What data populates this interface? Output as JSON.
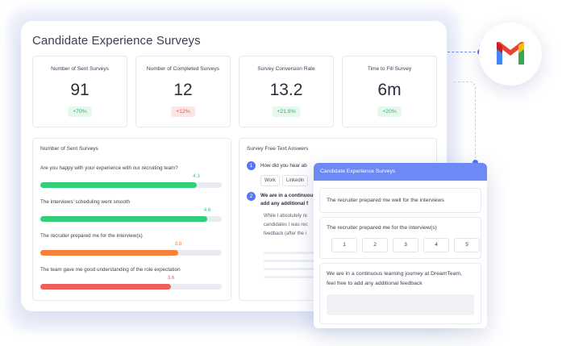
{
  "dashboard": {
    "title": "Candidate Experience Surveys",
    "stats": [
      {
        "label": "Number of Sent Surveys",
        "value": "91",
        "change": "+70%",
        "trend": "up"
      },
      {
        "label": "Number of Completed Surveys",
        "value": "12",
        "change": "+12%",
        "trend": "down"
      },
      {
        "label": "Survey Conversion Rate",
        "value": "13.2",
        "change": "+21.9%",
        "trend": "up"
      },
      {
        "label": "Time to Fill Survey",
        "value": "6m",
        "change": "+20%",
        "trend": "up"
      }
    ]
  },
  "sent_surveys": {
    "title": "Number of Sent Surveys",
    "scale_max": 5,
    "questions": [
      {
        "label": "Are you happy with your experience with our recruiting team?",
        "value": 4.3,
        "value_text": "4.3",
        "color": "#32cf79"
      },
      {
        "label": "The interviews' scheduling went smooth",
        "value": 4.6,
        "value_text": "4.6",
        "color": "#32cf79"
      },
      {
        "label": "The recruiter prepared me for the interview(s)",
        "value": 3.8,
        "value_text": "3.8",
        "color": "#f5813a"
      },
      {
        "label": "The team gave me good understanding of the role expectation",
        "value": 3.6,
        "value_text": "3.6",
        "color": "#f0605a"
      }
    ]
  },
  "free_text": {
    "title": "Survey Free Text Answers",
    "q1_number": "1",
    "q1_text": "How did you hear ab",
    "q1_chips": [
      "Work",
      "Linkedin"
    ],
    "q2_number": "2",
    "q2_line1": "We are in a continuou",
    "q2_line2": "add any additional f",
    "answer_line1": "While I absolutely re",
    "answer_line2": "candidates I was rec",
    "answer_line3": "feedback (after the i"
  },
  "integration": {
    "icon": "gmail-icon",
    "colors": {
      "red": "#ea4335",
      "blue": "#4285f4",
      "green": "#34a853",
      "yellow": "#fbbc04",
      "accent": "#5270f0"
    }
  },
  "form": {
    "header": "Candidate Experience Surveys",
    "q1": "The recruiter prepared me well for the interviews",
    "q2": "The recruiter prepared me for the interview(s)",
    "rating_options": [
      "1",
      "2",
      "3",
      "4",
      "5"
    ],
    "q3_line1": "We are in a continuous learning journey at DreamTeam,",
    "q3_line2": "feel free to add any additional feedback",
    "feedback_value": ""
  }
}
